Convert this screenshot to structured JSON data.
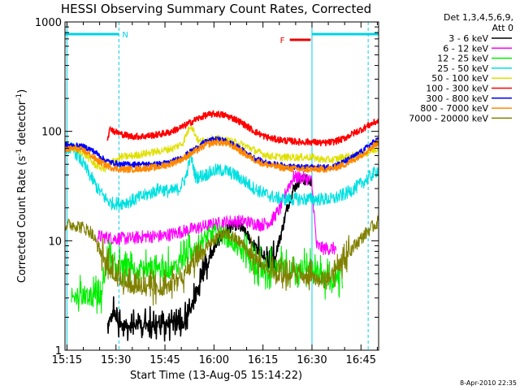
{
  "chart_data": {
    "type": "line",
    "title": "HESSI Observing Summary Count Rates, Corrected",
    "xlabel": "Start Time (13-Aug-05 15:14:22)",
    "ylabel_parts": {
      "main": "Corrected Count Rate (s",
      "sup1": "-1",
      "mid": " detector",
      "sup2": "-1",
      "end": ")"
    },
    "yscale": "log",
    "ylim": [
      1,
      1000
    ],
    "xlim": [
      0,
      96
    ],
    "x_units": "minutes after 15:14:22",
    "x_ticks": [
      {
        "label": "15:15",
        "t": 0.6
      },
      {
        "label": "15:30",
        "t": 15.6
      },
      {
        "label": "15:45",
        "t": 30.6
      },
      {
        "label": "16:00",
        "t": 45.6
      },
      {
        "label": "16:15",
        "t": 60.6
      },
      {
        "label": "16:30",
        "t": 75.6
      },
      {
        "label": "16:45",
        "t": 90.6
      }
    ],
    "y_ticks": [
      {
        "label": "1",
        "v": 1
      },
      {
        "label": "10",
        "v": 10
      },
      {
        "label": "100",
        "v": 100
      },
      {
        "label": "1000",
        "v": 1000
      }
    ],
    "legend": {
      "header": [
        "Det 1,3,4,5,6,9,",
        "Att 0"
      ],
      "placement": "right"
    },
    "annotations": {
      "night_label": "N",
      "flare_label": "F",
      "night_intervals": [
        [
          0,
          16.5
        ],
        [
          75.6,
          96
        ]
      ],
      "flare_interval": [
        68.8,
        75.2
      ],
      "vlines_dashed": [
        16.5,
        92.8
      ],
      "vlines_solid": [
        0.6,
        75.6
      ],
      "colors": {
        "night": "#00d0e8",
        "flare": "#e80000"
      }
    },
    "series": [
      {
        "name": "3 - 6 keV",
        "color": "#000000",
        "x": [
          0,
          3,
          6,
          8,
          11,
          13,
          15,
          16,
          20,
          24,
          28,
          33,
          36,
          38,
          40,
          42,
          44,
          46,
          48,
          50,
          52,
          54,
          56,
          58,
          60,
          62,
          64,
          66,
          68,
          70,
          72,
          74,
          75.5
        ],
        "y": [
          null,
          null,
          null,
          null,
          null,
          1.7,
          2.2,
          1.7,
          1.7,
          1.7,
          1.7,
          1.7,
          1.7,
          2.2,
          3,
          4.5,
          6.5,
          9,
          11,
          13,
          14,
          13,
          11,
          9,
          7,
          6,
          7,
          11,
          20,
          30,
          36,
          36,
          34
        ]
      },
      {
        "name": "6 - 12 keV",
        "color": "#ff00ff",
        "x": [
          10,
          15,
          20,
          25,
          30,
          35,
          40,
          45,
          50,
          55,
          60,
          63,
          66,
          68,
          70,
          72,
          74,
          75.5,
          77,
          79,
          81,
          83
        ],
        "y": [
          11,
          10.5,
          10.5,
          11,
          11,
          12,
          13,
          14,
          15,
          15,
          14,
          15,
          20,
          30,
          38,
          38,
          37,
          35,
          9,
          8.5,
          8.5,
          8.5
        ]
      },
      {
        "name": "12 - 25 keV",
        "color": "#00ee00",
        "x": [
          2,
          3,
          6,
          9,
          11,
          13,
          16,
          20,
          25,
          30,
          33,
          36,
          39,
          42,
          45,
          48,
          51,
          54,
          57,
          60,
          65,
          70,
          75,
          79,
          82,
          85
        ],
        "y": [
          3,
          3,
          3,
          3,
          3,
          7,
          5.5,
          5.5,
          5.5,
          5.5,
          5.5,
          6.5,
          8,
          10,
          11.5,
          11.5,
          10,
          8,
          6.5,
          5.5,
          5.5,
          5.5,
          5.5,
          4.5,
          4.5,
          4.5
        ]
      },
      {
        "name": "25 - 50 keV",
        "color": "#00e0e0",
        "x": [
          0,
          2,
          4,
          6,
          8,
          10,
          12,
          14,
          17,
          20,
          23,
          26,
          29,
          32,
          35,
          37,
          38.5,
          40,
          43,
          46,
          49,
          52,
          55,
          58,
          61,
          64,
          67,
          70,
          73,
          76,
          79,
          82,
          86,
          90,
          94,
          96
        ],
        "y": [
          72,
          70,
          60,
          48,
          38,
          30,
          25,
          22,
          22,
          23,
          25,
          27,
          30,
          28,
          30,
          38,
          60,
          38,
          40,
          44,
          44,
          40,
          35,
          30,
          27,
          25,
          24,
          24,
          24,
          24,
          24,
          24,
          27,
          32,
          40,
          45
        ]
      },
      {
        "name": "50 - 100 keV",
        "color": "#e0e000",
        "x": [
          0,
          3,
          6,
          9,
          12,
          14,
          17,
          21,
          25,
          29,
          33,
          36,
          38.5,
          41,
          44,
          47,
          50,
          53,
          56,
          59,
          62,
          66,
          70,
          75.6,
          79,
          82,
          85,
          88,
          91,
          94,
          96
        ],
        "y": [
          72,
          70,
          62,
          50,
          45,
          52,
          58,
          60,
          63,
          66,
          70,
          78,
          115,
          80,
          85,
          85,
          82,
          78,
          72,
          65,
          60,
          58,
          58,
          58,
          55,
          55,
          58,
          60,
          62,
          66,
          70
        ]
      },
      {
        "name": "100 - 300 keV",
        "color": "#ff0000",
        "x": [
          13,
          14,
          15,
          17,
          20,
          24,
          28,
          32,
          36,
          40,
          43,
          46,
          49,
          52,
          55,
          58,
          61,
          64,
          68,
          72,
          75.6,
          79,
          82,
          85,
          88,
          91,
          94,
          96
        ],
        "y": [
          88,
          108,
          100,
          95,
          90,
          90,
          93,
          98,
          110,
          128,
          140,
          145,
          140,
          130,
          115,
          100,
          90,
          85,
          82,
          80,
          80,
          78,
          80,
          85,
          95,
          105,
          118,
          125
        ]
      },
      {
        "name": "300 - 800 keV",
        "color": "#0000ff",
        "x": [
          0,
          3,
          6,
          8,
          10,
          12,
          14,
          17,
          20,
          24,
          28,
          32,
          36,
          40,
          43,
          46,
          49,
          52,
          55,
          58,
          61,
          64,
          68,
          72,
          75.6,
          79,
          82,
          85,
          88,
          91,
          94,
          96
        ],
        "y": [
          75,
          74,
          72,
          68,
          62,
          55,
          52,
          50,
          50,
          50,
          50,
          52,
          58,
          70,
          80,
          85,
          82,
          75,
          65,
          57,
          52,
          50,
          48,
          47,
          47,
          47,
          48,
          52,
          58,
          66,
          78,
          85
        ]
      },
      {
        "name": "800 - 7000 keV",
        "color": "#ff8800",
        "x": [
          0,
          3,
          6,
          8,
          10,
          12,
          14,
          17,
          20,
          24,
          28,
          32,
          36,
          40,
          43,
          46,
          49,
          52,
          55,
          58,
          61,
          64,
          68,
          72,
          75.6,
          79,
          82,
          85,
          88,
          91,
          94,
          96
        ],
        "y": [
          68,
          70,
          66,
          60,
          54,
          50,
          47,
          45,
          45,
          46,
          47,
          50,
          56,
          66,
          75,
          80,
          78,
          72,
          62,
          55,
          50,
          48,
          46,
          45,
          45,
          45,
          46,
          49,
          54,
          62,
          72,
          80
        ]
      },
      {
        "name": "7000 - 20000 keV",
        "color": "#808000",
        "x": [
          0,
          3,
          6,
          8,
          10,
          13,
          16,
          20,
          25,
          30,
          35,
          40,
          45,
          48,
          51,
          54,
          57,
          60,
          64,
          68,
          72,
          75.6,
          78,
          81,
          84,
          87,
          90,
          93,
          96
        ],
        "y": [
          14,
          14,
          13,
          12,
          9,
          6,
          4.5,
          3.8,
          3.6,
          3.6,
          4.2,
          6.5,
          10,
          11.5,
          11,
          9.5,
          7.5,
          6,
          5,
          4.8,
          4.6,
          4.5,
          4.5,
          4.8,
          6,
          8,
          10,
          12.5,
          15
        ]
      }
    ],
    "grid": false,
    "date_stamp": "8-Apr-2010 22:35"
  }
}
